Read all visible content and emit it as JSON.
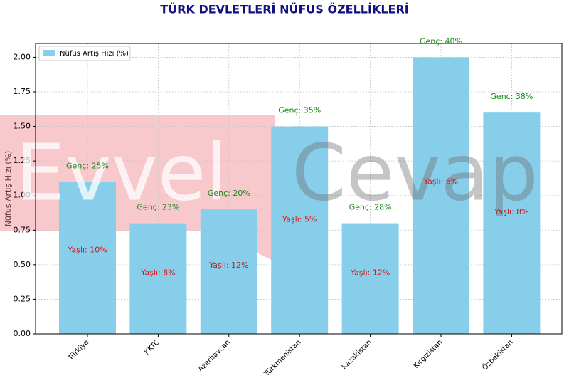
{
  "chart_data": {
    "type": "bar",
    "title": "TÜRK DEVLETLERİ NÜFUS ÖZELLİKLERİ",
    "y_label": "Nüfus Artış Hızı (%)",
    "categories": [
      "Türkiye",
      "KKTC",
      "Azerbaycan",
      "Türkmenistan",
      "Kazakistan",
      "Kırgızistan",
      "Özbekistan"
    ],
    "series": [
      {
        "name": "Nüfus Artış Hızı (%)",
        "color": "#87ceeb",
        "values": [
          1.1,
          0.8,
          0.9,
          1.5,
          0.8,
          2.0,
          1.6
        ]
      }
    ],
    "annotations_young": [
      "Genç: 25%",
      "Genç: 23%",
      "Genç: 20%",
      "Genç: 35%",
      "Genç: 28%",
      "Genç: 40%",
      "Genç: 38%"
    ],
    "annotations_old": [
      "Yaşlı: 10%",
      "Yaşlı: 8%",
      "Yaşlı: 12%",
      "Yaşlı: 5%",
      "Yaşlı: 12%",
      "Yaşlı: 6%",
      "Yaşlı: 8%"
    ],
    "ylim": [
      0,
      2.1
    ],
    "yticks": [
      {
        "value": 0,
        "label": "0.00"
      },
      {
        "value": 0.25,
        "label": "0.25"
      },
      {
        "value": 0.5,
        "label": "0.50"
      },
      {
        "value": 0.75,
        "label": "0.75"
      },
      {
        "value": 1,
        "label": "1.00"
      },
      {
        "value": 1.25,
        "label": "1.25"
      },
      {
        "value": 1.5,
        "label": "1.50"
      },
      {
        "value": 1.75,
        "label": "1.75"
      },
      {
        "value": 2,
        "label": "2.00"
      }
    ],
    "grid": true,
    "legend": "upper left",
    "watermark": [
      "Evvel",
      "Cevap"
    ]
  }
}
